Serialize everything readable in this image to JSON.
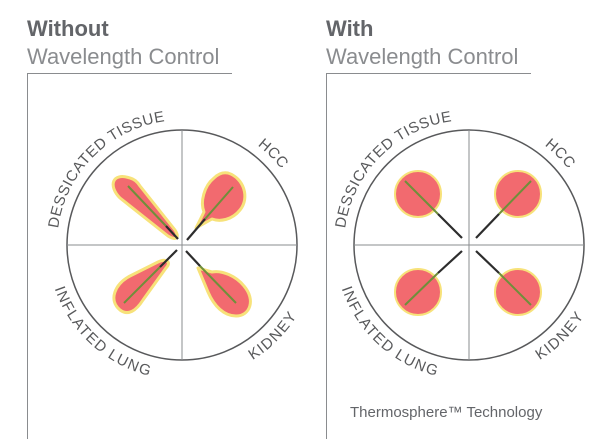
{
  "panels": [
    {
      "title_bold": "Without",
      "title_light": "Wavelength Control",
      "labels": {
        "top_left": "DESSICATED TISSUE",
        "top_right": "HCC",
        "bottom_left": "INFLATED LUNG",
        "bottom_right": "KIDNEY"
      },
      "ablation_shape": "irregular"
    },
    {
      "title_bold": "With",
      "title_light": "Wavelength Control",
      "labels": {
        "top_left": "DESSICATED TISSUE",
        "top_right": "HCC",
        "bottom_left": "INFLATED LUNG",
        "bottom_right": "KIDNEY"
      },
      "ablation_shape": "spherical"
    }
  ],
  "footnote": "Thermosphere™ Technology",
  "colors": {
    "ablation_fill": "#f26a6f",
    "ablation_edge": "#f7e27a",
    "needle": "#2d2d2d",
    "needle_tip": "#6f8f3a",
    "circle_stroke": "#58595b",
    "axes": "#8a8c8f"
  }
}
